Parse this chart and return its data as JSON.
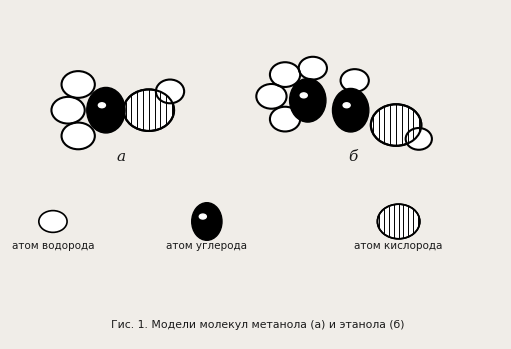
{
  "title": "Гис. 1. Модели молекул метанола (а) и этанола (б)",
  "label_a": "а",
  "label_b": "б",
  "legend_hydrogen": "атом водорода",
  "legend_carbon": "атом углерода",
  "legend_oxygen": "атом кислорода",
  "bg_color": "#f0ede8",
  "text_color": "#1a1a1a"
}
